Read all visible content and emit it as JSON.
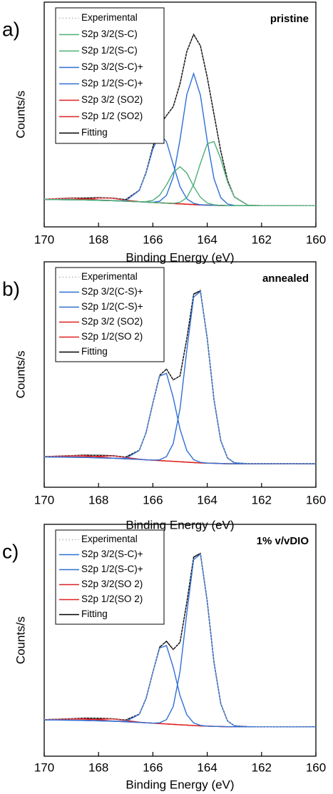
{
  "chart_data": [
    {
      "type": "line",
      "annotation": "a)",
      "label": "pristine",
      "xlabel": "Binding Energy (eV)",
      "ylabel": "Counts/s",
      "xlim": [
        170,
        160
      ],
      "xticks": [
        170,
        168,
        166,
        164,
        162,
        160
      ],
      "ylim": [
        -1.2,
        11.5
      ],
      "x": [
        170,
        169,
        168.5,
        168,
        167.5,
        167,
        166.5,
        166.25,
        166,
        165.75,
        165.5,
        165.25,
        165,
        164.75,
        164.5,
        164.25,
        164,
        163.75,
        163.5,
        163.25,
        163,
        162.5,
        162,
        161,
        160
      ],
      "series": [
        {
          "name": "Experimental",
          "color": "#b8b8b8",
          "linestyle": "dotted",
          "values": [
            0.38,
            0.41,
            0.45,
            0.43,
            0.45,
            0.32,
            0.9,
            1.85,
            3.38,
            4.5,
            5.12,
            5.55,
            6.95,
            8.68,
            9.74,
            9.0,
            7.3,
            5.1,
            3.12,
            1.4,
            0.52,
            0.04,
            0.01,
            0.02,
            0
          ]
        },
        {
          "name": "S2p 3/2(S-C)",
          "color": "#4caf78",
          "linestyle": "solid",
          "values": [
            0.35,
            0.33,
            0.32,
            0.3,
            0.28,
            0.25,
            0.22,
            0.2,
            0.18,
            0.16,
            0.14,
            0.13,
            0.19,
            0.45,
            1.18,
            2.39,
            3.5,
            3.62,
            2.63,
            1.33,
            0.48,
            0.02,
            0,
            0,
            0
          ]
        },
        {
          "name": "S2p 1/2(S-C)",
          "color": "#4caf78",
          "linestyle": "solid",
          "values": [
            0.35,
            0.33,
            0.32,
            0.3,
            0.28,
            0.25,
            0.22,
            0.23,
            0.3,
            0.59,
            1.17,
            1.88,
            2.2,
            1.84,
            1.09,
            0.47,
            0.15,
            0.05,
            0.01,
            0,
            0,
            0,
            0,
            0,
            0
          ]
        },
        {
          "name": "S2p 3/2(S-C)+",
          "color": "#2f6fd6",
          "linestyle": "solid",
          "values": [
            0.35,
            0.33,
            0.32,
            0.3,
            0.28,
            0.25,
            0.22,
            0.2,
            0.19,
            0.25,
            0.58,
            1.62,
            3.74,
            6.28,
            7.46,
            6.24,
            3.67,
            1.52,
            0.45,
            0.09,
            0.01,
            0,
            0,
            0,
            0
          ]
        },
        {
          "name": "S2p 1/2(S-C)+",
          "color": "#2f6fd6",
          "linestyle": "solid",
          "values": [
            0.35,
            0.33,
            0.32,
            0.3,
            0.28,
            0.28,
            0.86,
            1.85,
            3.2,
            4.03,
            3.62,
            2.32,
            1.07,
            0.38,
            0.13,
            0.05,
            0.03,
            0.02,
            0.01,
            0,
            0,
            0,
            0,
            0,
            0
          ]
        },
        {
          "name": "S2p 3/2 (SO2)",
          "color": "#e02020",
          "linestyle": "solid",
          "values": [
            0.35,
            0.34,
            0.36,
            0.43,
            0.42,
            0.31,
            0.23,
            0.2,
            0.18,
            0.16,
            0.14,
            0.12,
            0.1,
            0.08,
            0.06,
            0.04,
            0.03,
            0.02,
            0.01,
            0,
            0,
            0,
            0,
            0,
            0
          ]
        },
        {
          "name": "S2p 1/2 (SO2)",
          "color": "#e02020",
          "linestyle": "solid",
          "values": [
            0.36,
            0.42,
            0.39,
            0.32,
            0.29,
            0.25,
            0.22,
            0.2,
            0.18,
            0.16,
            0.14,
            0.12,
            0.1,
            0.08,
            0.06,
            0.04,
            0.03,
            0.02,
            0.01,
            0,
            0,
            0,
            0,
            0,
            0
          ]
        },
        {
          "name": "Fitting",
          "color": "#000000",
          "linestyle": "solid",
          "values": [
            0.36,
            0.43,
            0.43,
            0.45,
            0.43,
            0.34,
            0.87,
            1.88,
            3.33,
            4.55,
            5.09,
            5.59,
            6.9,
            8.71,
            9.68,
            9.03,
            7.26,
            5.15,
            3.08,
            1.42,
            0.49,
            0.02,
            0,
            0,
            0
          ]
        }
      ]
    },
    {
      "type": "line",
      "annotation": "b)",
      "label": "annealed",
      "xlabel": "Binding Energy (eV)",
      "ylabel": "Counts/s",
      "xlim": [
        170,
        160
      ],
      "xticks": [
        170,
        168,
        166,
        164,
        162,
        160
      ],
      "ylim": [
        -1.2,
        10.3
      ],
      "x": [
        170,
        169,
        168.5,
        168,
        167.5,
        167,
        166.5,
        166.25,
        166,
        165.75,
        165.5,
        165.25,
        165,
        164.75,
        164.5,
        164.25,
        164,
        163.75,
        163.5,
        163.25,
        163,
        162.5,
        162,
        161,
        160
      ],
      "series": [
        {
          "name": "Experimental",
          "color": "#b8b8b8",
          "linestyle": "dotted",
          "values": [
            0.37,
            0.42,
            0.46,
            0.42,
            0.4,
            0.35,
            0.7,
            1.6,
            3.12,
            4.5,
            4.85,
            4.3,
            4.46,
            6.42,
            8.7,
            8.9,
            6.35,
            3.28,
            1.2,
            0.31,
            0.07,
            0.02,
            0.01,
            0,
            0.02
          ]
        },
        {
          "name": "S2p 3/2(C-S)+",
          "color": "#2f6fd6",
          "linestyle": "solid",
          "values": [
            0.35,
            0.33,
            0.32,
            0.3,
            0.28,
            0.25,
            0.22,
            0.2,
            0.18,
            0.2,
            0.36,
            1.03,
            2.82,
            5.8,
            8.5,
            8.79,
            6.39,
            3.26,
            1.17,
            0.29,
            0.05,
            0,
            0,
            0,
            0
          ]
        },
        {
          "name": "S2p 1/2(C-S)+",
          "color": "#2f6fd6",
          "linestyle": "solid",
          "values": [
            0.35,
            0.33,
            0.32,
            0.3,
            0.28,
            0.27,
            0.68,
            1.59,
            3.1,
            4.47,
            4.61,
            3.37,
            1.76,
            0.67,
            0.21,
            0.07,
            0.03,
            0.02,
            0.01,
            0,
            0,
            0,
            0,
            0,
            0
          ]
        },
        {
          "name": "S2p 3/2 (SO2)",
          "color": "#e02020",
          "linestyle": "solid",
          "values": [
            0.35,
            0.34,
            0.35,
            0.38,
            0.4,
            0.32,
            0.23,
            0.2,
            0.18,
            0.16,
            0.14,
            0.12,
            0.1,
            0.08,
            0.06,
            0.04,
            0.03,
            0.02,
            0.01,
            0,
            0,
            0,
            0,
            0,
            0
          ]
        },
        {
          "name": "S2p 1/2(SO 2)",
          "color": "#e02020",
          "linestyle": "solid",
          "values": [
            0.36,
            0.4,
            0.41,
            0.35,
            0.29,
            0.25,
            0.22,
            0.2,
            0.18,
            0.16,
            0.14,
            0.12,
            0.1,
            0.08,
            0.06,
            0.04,
            0.03,
            0.02,
            0.01,
            0,
            0,
            0,
            0,
            0,
            0
          ]
        },
        {
          "name": "Fitting",
          "color": "#000000",
          "linestyle": "solid",
          "values": [
            0.36,
            0.41,
            0.44,
            0.43,
            0.41,
            0.34,
            0.69,
            1.59,
            3.1,
            4.51,
            4.83,
            4.28,
            4.48,
            6.39,
            8.65,
            8.82,
            6.39,
            3.26,
            1.17,
            0.29,
            0.05,
            0,
            0,
            0,
            0
          ]
        }
      ]
    },
    {
      "type": "line",
      "annotation": "c)",
      "label": "1% v/vDIO",
      "xlabel": "Binding Energy (eV)",
      "ylabel": "Counts/s",
      "xlim": [
        170,
        160
      ],
      "xticks": [
        170,
        168,
        166,
        164,
        162,
        160
      ],
      "ylim": [
        -1.5,
        10.3
      ],
      "x": [
        170,
        169,
        168.5,
        168,
        167.5,
        167,
        166.5,
        166.25,
        166,
        165.75,
        165.5,
        165.25,
        165,
        164.75,
        164.5,
        164.25,
        164,
        163.75,
        163.5,
        163.25,
        163,
        162.5,
        162,
        161,
        160
      ],
      "series": [
        {
          "name": "Experimental",
          "color": "#b8b8b8",
          "linestyle": "dotted",
          "values": [
            0.38,
            0.4,
            0.45,
            0.44,
            0.42,
            0.33,
            0.66,
            1.48,
            2.75,
            4.1,
            4.3,
            3.9,
            4.33,
            6.3,
            8.68,
            8.85,
            6.42,
            3.22,
            1.2,
            0.3,
            0.06,
            0.03,
            0,
            0.01,
            0.02
          ]
        },
        {
          "name": "S2p 3/2(S-C)+",
          "color": "#2f6fd6",
          "linestyle": "solid",
          "values": [
            0.35,
            0.33,
            0.32,
            0.3,
            0.28,
            0.25,
            0.22,
            0.2,
            0.18,
            0.2,
            0.36,
            1.03,
            2.82,
            5.8,
            8.5,
            8.79,
            6.39,
            3.26,
            1.17,
            0.29,
            0.05,
            0,
            0,
            0,
            0
          ]
        },
        {
          "name": "S2p 1/2(S-C)+",
          "color": "#2f6fd6",
          "linestyle": "solid",
          "values": [
            0.35,
            0.33,
            0.32,
            0.3,
            0.28,
            0.27,
            0.63,
            1.44,
            2.78,
            4.01,
            4.13,
            3.02,
            1.58,
            0.61,
            0.19,
            0.07,
            0.03,
            0.02,
            0.01,
            0,
            0,
            0,
            0,
            0,
            0
          ]
        },
        {
          "name": "S2p 3/2(SO 2)",
          "color": "#e02020",
          "linestyle": "solid",
          "values": [
            0.35,
            0.34,
            0.35,
            0.38,
            0.4,
            0.32,
            0.23,
            0.2,
            0.18,
            0.16,
            0.14,
            0.12,
            0.1,
            0.08,
            0.06,
            0.04,
            0.03,
            0.02,
            0.01,
            0,
            0,
            0,
            0,
            0,
            0
          ]
        },
        {
          "name": "S2p 1/2(SO 2)",
          "color": "#e02020",
          "linestyle": "solid",
          "values": [
            0.36,
            0.4,
            0.41,
            0.35,
            0.29,
            0.25,
            0.22,
            0.2,
            0.18,
            0.16,
            0.14,
            0.12,
            0.1,
            0.08,
            0.06,
            0.04,
            0.03,
            0.02,
            0.01,
            0,
            0,
            0,
            0,
            0,
            0
          ]
        },
        {
          "name": "Fitting",
          "color": "#000000",
          "linestyle": "solid",
          "values": [
            0.36,
            0.41,
            0.44,
            0.43,
            0.41,
            0.34,
            0.64,
            1.44,
            2.78,
            4.05,
            4.35,
            3.93,
            4.3,
            6.33,
            8.63,
            8.82,
            6.39,
            3.26,
            1.17,
            0.29,
            0.05,
            0,
            0,
            0,
            0
          ]
        }
      ]
    }
  ]
}
